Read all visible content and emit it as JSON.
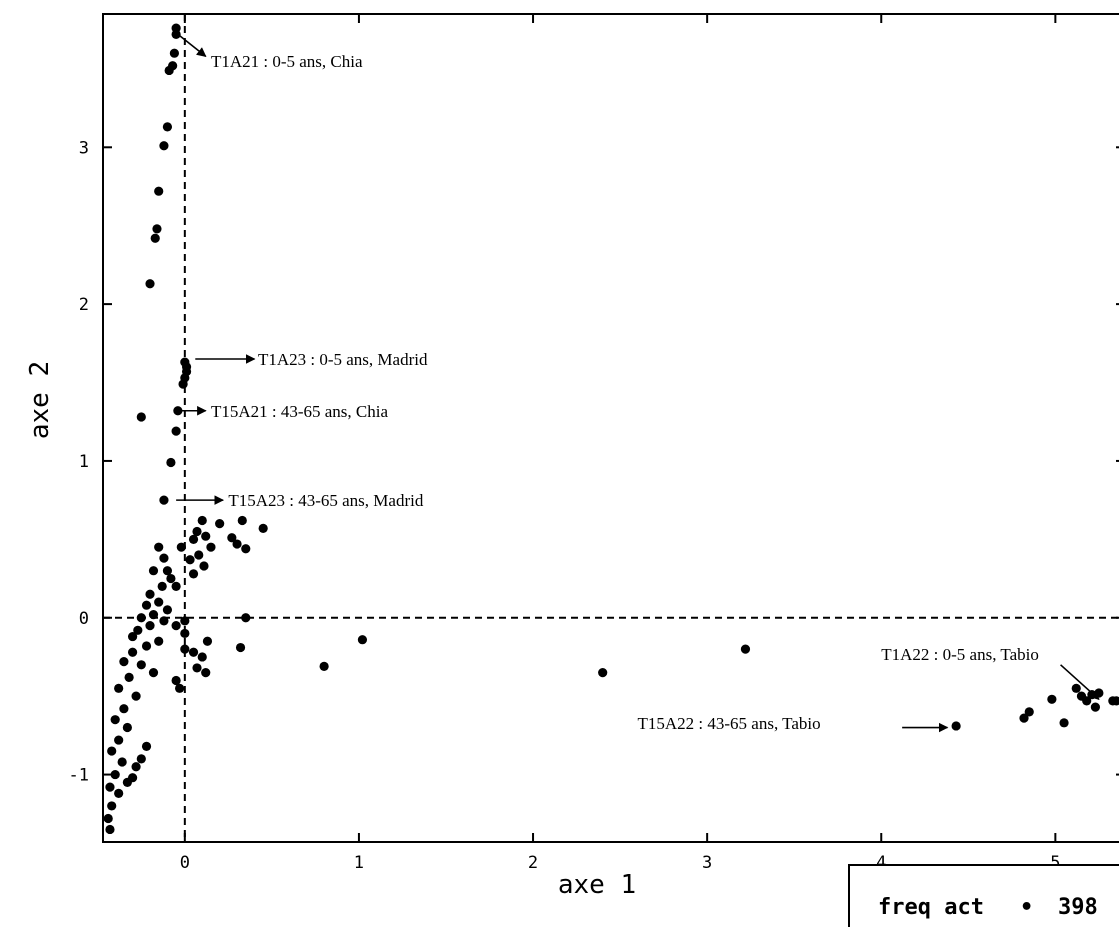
{
  "chart_data": {
    "type": "scatter",
    "xlabel": "axe 1",
    "ylabel": "axe 2",
    "xlim": [
      -0.47,
      5.4
    ],
    "ylim": [
      -1.43,
      3.85
    ],
    "xticks": [
      0,
      1,
      2,
      3,
      4,
      5
    ],
    "yticks": [
      -1,
      0,
      1,
      2,
      3
    ],
    "reference_lines": {
      "x": 0,
      "y": 0,
      "style": "dashed"
    },
    "grid": false,
    "legend": {
      "placement": "bottom-right",
      "label": "freq act",
      "marker": "•",
      "value": "398"
    },
    "annotations": [
      {
        "text": "T1A21 : 0-5 ans, Chia",
        "x": 0.15,
        "y": 3.55,
        "arrow_from": [
          -0.05,
          3.73
        ],
        "arrow_to": [
          0.12,
          3.58
        ]
      },
      {
        "text": "T1A23 : 0-5 ans, Madrid",
        "x": 0.42,
        "y": 1.65,
        "arrow_from": [
          0.06,
          1.65
        ],
        "arrow_to": [
          0.4,
          1.65
        ]
      },
      {
        "text": "T15A21 : 43-65 ans, Chia",
        "x": 0.15,
        "y": 1.32,
        "arrow_from": [
          -0.05,
          1.32
        ],
        "arrow_to": [
          0.12,
          1.32
        ]
      },
      {
        "text": "T15A23 : 43-65 ans, Madrid",
        "x": 0.25,
        "y": 0.75,
        "arrow_from": [
          -0.05,
          0.75
        ],
        "arrow_to": [
          0.22,
          0.75
        ]
      },
      {
        "text": "T1A22 : 0-5 ans, Tabio",
        "x": 4.0,
        "y": -0.23,
        "arrow_from": [
          5.03,
          -0.3
        ],
        "arrow_to": [
          5.25,
          -0.52
        ]
      },
      {
        "text": "T15A22 : 43-65 ans, Tabio",
        "x": 2.6,
        "y": -0.67,
        "arrow_from": [
          4.12,
          -0.7
        ],
        "arrow_to": [
          4.38,
          -0.7
        ]
      }
    ],
    "points": [
      [
        -0.05,
        3.76
      ],
      [
        -0.05,
        3.72
      ],
      [
        -0.06,
        3.6
      ],
      [
        -0.07,
        3.52
      ],
      [
        -0.09,
        3.49
      ],
      [
        -0.1,
        3.13
      ],
      [
        -0.12,
        3.01
      ],
      [
        -0.15,
        2.72
      ],
      [
        -0.16,
        2.48
      ],
      [
        -0.17,
        2.42
      ],
      [
        -0.2,
        2.13
      ],
      [
        0.0,
        1.63
      ],
      [
        0.01,
        1.6
      ],
      [
        0.01,
        1.57
      ],
      [
        0.0,
        1.53
      ],
      [
        -0.01,
        1.49
      ],
      [
        -0.25,
        1.28
      ],
      [
        -0.04,
        1.32
      ],
      [
        -0.05,
        1.19
      ],
      [
        -0.08,
        0.99
      ],
      [
        -0.12,
        0.75
      ],
      [
        0.45,
        0.57
      ],
      [
        0.33,
        0.62
      ],
      [
        0.2,
        0.6
      ],
      [
        0.27,
        0.51
      ],
      [
        0.3,
        0.47
      ],
      [
        0.35,
        0.44
      ],
      [
        0.1,
        0.62
      ],
      [
        0.07,
        0.55
      ],
      [
        0.05,
        0.5
      ],
      [
        0.12,
        0.52
      ],
      [
        0.15,
        0.45
      ],
      [
        0.08,
        0.4
      ],
      [
        0.03,
        0.37
      ],
      [
        -0.02,
        0.45
      ],
      [
        0.11,
        0.33
      ],
      [
        0.05,
        0.28
      ],
      [
        -0.15,
        0.45
      ],
      [
        -0.12,
        0.38
      ],
      [
        -0.18,
        0.3
      ],
      [
        -0.1,
        0.3
      ],
      [
        -0.08,
        0.25
      ],
      [
        -0.05,
        0.2
      ],
      [
        -0.13,
        0.2
      ],
      [
        -0.2,
        0.15
      ],
      [
        -0.15,
        0.1
      ],
      [
        -0.22,
        0.08
      ],
      [
        -0.18,
        0.02
      ],
      [
        -0.25,
        0.0
      ],
      [
        -0.1,
        0.05
      ],
      [
        -0.12,
        -0.02
      ],
      [
        -0.2,
        -0.05
      ],
      [
        -0.27,
        -0.08
      ],
      [
        -0.3,
        -0.12
      ],
      [
        -0.15,
        -0.15
      ],
      [
        -0.22,
        -0.18
      ],
      [
        -0.3,
        -0.22
      ],
      [
        -0.35,
        -0.28
      ],
      [
        -0.25,
        -0.3
      ],
      [
        -0.18,
        -0.35
      ],
      [
        -0.32,
        -0.38
      ],
      [
        -0.38,
        -0.45
      ],
      [
        -0.28,
        -0.5
      ],
      [
        -0.35,
        -0.58
      ],
      [
        -0.4,
        -0.65
      ],
      [
        -0.33,
        -0.7
      ],
      [
        -0.38,
        -0.78
      ],
      [
        -0.42,
        -0.85
      ],
      [
        -0.36,
        -0.92
      ],
      [
        -0.4,
        -1.0
      ],
      [
        -0.43,
        -1.08
      ],
      [
        -0.38,
        -1.12
      ],
      [
        -0.42,
        -1.2
      ],
      [
        -0.44,
        -1.28
      ],
      [
        -0.43,
        -1.35
      ],
      [
        -0.22,
        -0.82
      ],
      [
        -0.25,
        -0.9
      ],
      [
        -0.28,
        -0.95
      ],
      [
        -0.3,
        -1.02
      ],
      [
        -0.33,
        -1.05
      ],
      [
        0.0,
        -0.1
      ],
      [
        0.05,
        -0.22
      ],
      [
        0.1,
        -0.25
      ],
      [
        0.13,
        -0.15
      ],
      [
        0.07,
        -0.32
      ],
      [
        0.12,
        -0.35
      ],
      [
        -0.05,
        -0.4
      ],
      [
        -0.03,
        -0.45
      ],
      [
        0.0,
        -0.2
      ],
      [
        -0.05,
        -0.05
      ],
      [
        0.0,
        -0.02
      ],
      [
        0.35,
        0.0
      ],
      [
        0.32,
        -0.19
      ],
      [
        0.8,
        -0.31
      ],
      [
        1.02,
        -0.14
      ],
      [
        2.4,
        -0.35
      ],
      [
        3.22,
        -0.2
      ],
      [
        4.43,
        -0.69
      ],
      [
        4.82,
        -0.64
      ],
      [
        4.85,
        -0.6
      ],
      [
        4.98,
        -0.52
      ],
      [
        5.05,
        -0.67
      ],
      [
        5.12,
        -0.45
      ],
      [
        5.15,
        -0.5
      ],
      [
        5.18,
        -0.53
      ],
      [
        5.21,
        -0.49
      ],
      [
        5.23,
        -0.57
      ],
      [
        5.25,
        -0.48
      ],
      [
        5.33,
        -0.53
      ],
      [
        5.35,
        -0.53
      ]
    ]
  }
}
